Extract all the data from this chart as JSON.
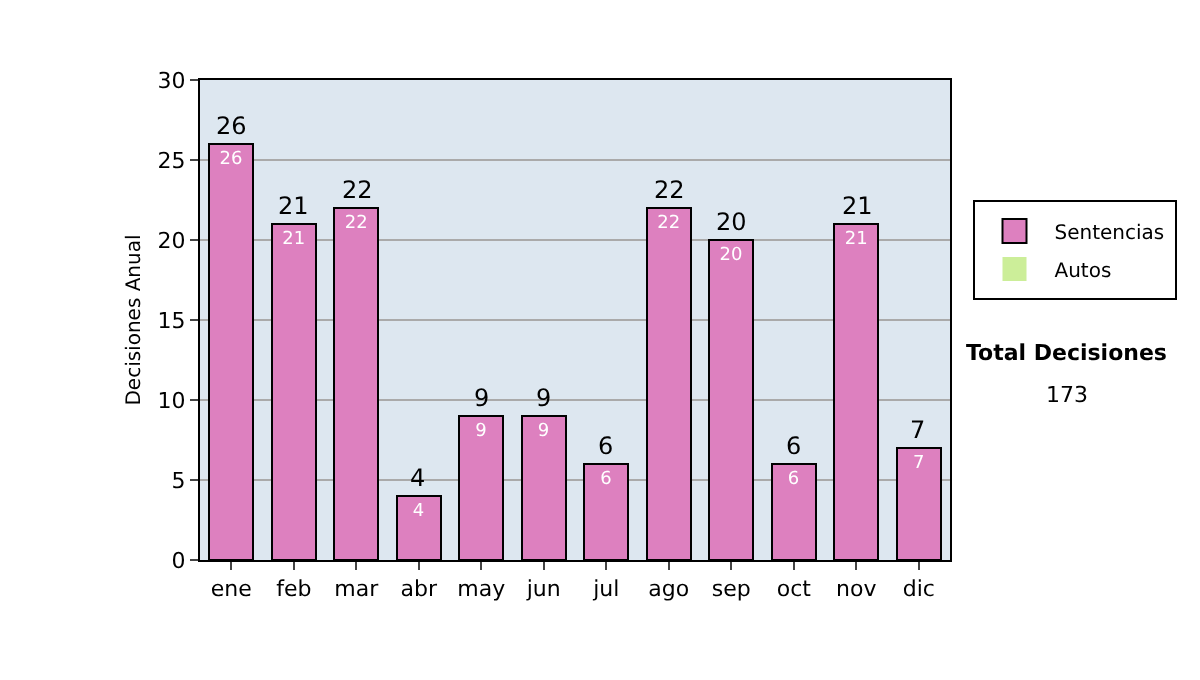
{
  "chart_data": {
    "type": "bar",
    "stacked": true,
    "ylabel": "Decisiones Anual",
    "categories": [
      "ene",
      "feb",
      "mar",
      "abr",
      "may",
      "jun",
      "jul",
      "ago",
      "sep",
      "oct",
      "nov",
      "dic"
    ],
    "series": [
      {
        "name": "Sentencias",
        "color": "#dd80bf",
        "values": [
          26,
          21,
          22,
          4,
          9,
          9,
          6,
          22,
          20,
          6,
          21,
          7
        ],
        "value_labels": [
          "26",
          "21",
          "22",
          "4",
          "9",
          "9",
          "6",
          "22",
          "20",
          "6",
          "21",
          "7"
        ]
      },
      {
        "name": "Autos",
        "color": "#ccee99",
        "values": [
          0,
          0,
          0,
          0,
          0,
          0,
          0,
          0,
          0,
          0,
          0,
          0
        ]
      }
    ],
    "totals": [
      "26",
      "21",
      "22",
      "4",
      "9",
      "9",
      "6",
      "22",
      "20",
      "6",
      "21",
      "7"
    ],
    "ylim": [
      0,
      30
    ],
    "yticks": [
      0,
      5,
      10,
      15,
      20,
      25,
      30
    ],
    "grid": "y",
    "legend": "right",
    "annotations": [
      "Total Decisiones",
      "173"
    ]
  }
}
